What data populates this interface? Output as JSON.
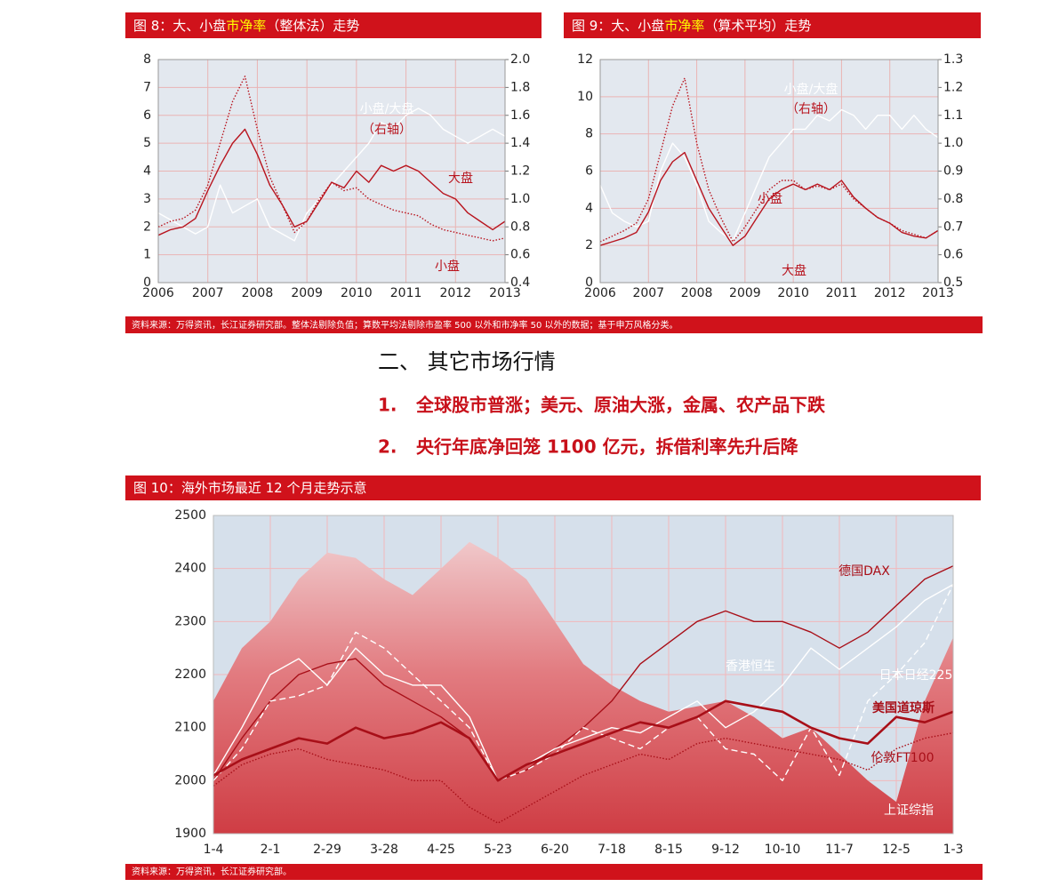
{
  "chart_data": [
    {
      "type": "line",
      "title": [
        "图 8：大、小盘",
        "市净率",
        "（整体法）走势"
      ],
      "x": [
        2006,
        2006.25,
        2006.5,
        2006.75,
        2007,
        2007.25,
        2007.5,
        2007.75,
        2008,
        2008.25,
        2008.5,
        2008.75,
        2009,
        2009.25,
        2009.5,
        2009.75,
        2010,
        2010.25,
        2010.5,
        2010.75,
        2011,
        2011.25,
        2011.5,
        2011.75,
        2012,
        2012.25,
        2012.5,
        2012.75,
        2013
      ],
      "xlim": [
        2006,
        2013
      ],
      "xticks": [
        2006,
        2007,
        2008,
        2009,
        2010,
        2011,
        2012,
        2013
      ],
      "ylim": [
        0,
        8
      ],
      "yticks": [
        0,
        1,
        2,
        3,
        4,
        5,
        6,
        7,
        8
      ],
      "y2lim": [
        0.4,
        2.0
      ],
      "y2ticks": [
        0.4,
        0.6,
        0.8,
        {
          "value": 1.0,
          "label": "1.0"
        },
        1.2,
        1.4,
        1.6,
        1.8,
        {
          "value": 2.0,
          "label": "2.0"
        }
      ],
      "grid": true,
      "series": [
        {
          "name": "小盘/大盘",
          "axis": "y2",
          "color": "#ffffff",
          "style": "solid",
          "values": [
            0.9,
            0.85,
            0.8,
            0.75,
            0.8,
            1.1,
            0.9,
            0.95,
            1.0,
            0.8,
            0.75,
            0.7,
            0.9,
            1.0,
            1.1,
            1.2,
            1.3,
            1.4,
            1.55,
            1.5,
            1.6,
            1.65,
            1.6,
            1.5,
            1.45,
            1.4,
            1.45,
            1.5,
            1.45
          ]
        },
        {
          "name": "小盘",
          "color": "#b8141e",
          "style": "dotted",
          "values": [
            2.0,
            2.2,
            2.3,
            2.6,
            3.5,
            5.0,
            6.5,
            7.4,
            5.5,
            3.8,
            2.8,
            1.8,
            2.2,
            3.0,
            3.6,
            3.3,
            3.4,
            3.0,
            2.8,
            2.6,
            2.5,
            2.4,
            2.1,
            1.9,
            1.8,
            1.7,
            1.6,
            1.5,
            1.6
          ]
        },
        {
          "name": "大盘",
          "color": "#b8141e",
          "style": "solid",
          "values": [
            1.7,
            1.9,
            2.0,
            2.3,
            3.3,
            4.2,
            5.0,
            5.5,
            4.6,
            3.5,
            2.8,
            2.0,
            2.2,
            2.9,
            3.6,
            3.4,
            4.0,
            3.6,
            4.2,
            4.0,
            4.2,
            4.0,
            3.6,
            3.2,
            3.0,
            2.5,
            2.2,
            1.9,
            2.2
          ]
        }
      ],
      "annotations": [
        "（右轴）"
      ]
    },
    {
      "type": "line",
      "title": [
        "图 9：大、小盘",
        "市净率",
        "（算术平均）走势"
      ],
      "x": [
        2006,
        2006.25,
        2006.5,
        2006.75,
        2007,
        2007.25,
        2007.5,
        2007.75,
        2008,
        2008.25,
        2008.5,
        2008.75,
        2009,
        2009.25,
        2009.5,
        2009.75,
        2010,
        2010.25,
        2010.5,
        2010.75,
        2011,
        2011.25,
        2011.5,
        2011.75,
        2012,
        2012.25,
        2012.5,
        2012.75,
        2013
      ],
      "xlim": [
        2006,
        2013
      ],
      "xticks": [
        2006,
        2007,
        2008,
        2009,
        2010,
        2011,
        2012,
        2013
      ],
      "ylim": [
        0,
        12
      ],
      "yticks": [
        0,
        2,
        4,
        6,
        8,
        10,
        12
      ],
      "y2lim": [
        0.5,
        1.3
      ],
      "y2ticks": [
        0.5,
        0.6,
        0.7,
        0.8,
        0.9,
        {
          "value": 1.0,
          "label": "1.0"
        },
        1.1,
        1.2,
        1.3
      ],
      "grid": true,
      "series": [
        {
          "name": "小盘/大盘",
          "axis": "y2",
          "color": "#ffffff",
          "style": "solid",
          "values": [
            0.85,
            0.75,
            0.72,
            0.7,
            0.72,
            0.9,
            1.0,
            0.95,
            0.85,
            0.72,
            0.68,
            0.65,
            0.75,
            0.85,
            0.95,
            1.0,
            1.05,
            1.05,
            1.1,
            1.08,
            1.12,
            1.1,
            1.05,
            1.1,
            1.1,
            1.05,
            1.1,
            1.05,
            1.02
          ]
        },
        {
          "name": "小盘",
          "color": "#b8141e",
          "style": "dotted",
          "values": [
            2.2,
            2.5,
            2.8,
            3.2,
            4.5,
            7,
            9.5,
            11,
            7.5,
            5,
            3.5,
            2.2,
            3,
            4,
            5,
            5.5,
            5.5,
            5.0,
            5.2,
            5.0,
            5.3,
            4.5,
            4.0,
            3.5,
            3.2,
            2.8,
            2.6,
            2.4,
            2.8
          ]
        },
        {
          "name": "大盘",
          "color": "#b8141e",
          "style": "solid",
          "values": [
            2.0,
            2.2,
            2.4,
            2.7,
            3.8,
            5.5,
            6.5,
            7.0,
            5.5,
            4.0,
            3.0,
            2.0,
            2.5,
            3.5,
            4.5,
            5.0,
            5.3,
            5.0,
            5.3,
            5.0,
            5.5,
            4.6,
            4.0,
            3.5,
            3.2,
            2.7,
            2.5,
            2.4,
            2.8
          ]
        }
      ],
      "annotations": [
        "（右轴）"
      ]
    },
    {
      "type": "line",
      "title": [
        "图 10：海外市场最近 12 个月走势示意"
      ],
      "categories": [
        "1-4",
        null,
        "2-1",
        null,
        "2-29",
        null,
        "3-28",
        null,
        "4-25",
        null,
        "5-23",
        null,
        "6-20",
        null,
        "7-18",
        null,
        "8-15",
        null,
        "9-12",
        null,
        "10-10",
        null,
        "11-7",
        null,
        "12-5",
        null,
        "1-3"
      ],
      "ylim": [
        1900,
        2500
      ],
      "yticks": [
        1900,
        2000,
        2100,
        2200,
        2300,
        2400,
        2500
      ],
      "grid": true,
      "series": [
        {
          "name": "上证综指",
          "color": "#d9545a",
          "style": "area",
          "values": [
            2150,
            2250,
            2300,
            2380,
            2430,
            2420,
            2380,
            2350,
            2400,
            2450,
            2420,
            2380,
            2300,
            2220,
            2180,
            2150,
            2130,
            2140,
            2150,
            2120,
            2080,
            2100,
            2050,
            2000,
            1960,
            2150,
            2270
          ]
        },
        {
          "name": "德国DAX",
          "color": "#a80f18",
          "style": "solid",
          "values": [
            2000,
            2080,
            2150,
            2200,
            2220,
            2230,
            2180,
            2150,
            2120,
            2080,
            2000,
            2020,
            2060,
            2100,
            2150,
            2220,
            2260,
            2300,
            2320,
            2300,
            2300,
            2280,
            2250,
            2280,
            2330,
            2380,
            2405
          ]
        },
        {
          "name": "香港恒生",
          "color": "#ffffff",
          "style": "solid",
          "values": [
            2010,
            2100,
            2200,
            2230,
            2180,
            2250,
            2200,
            2180,
            2180,
            2120,
            2000,
            2030,
            2060,
            2080,
            2100,
            2090,
            2120,
            2150,
            2100,
            2130,
            2180,
            2250,
            2210,
            2250,
            2290,
            2340,
            2370
          ]
        },
        {
          "name": "日本日经225",
          "color": "#ffffff",
          "style": "dashed",
          "values": [
            2000,
            2060,
            2150,
            2160,
            2180,
            2280,
            2250,
            2200,
            2150,
            2100,
            2000,
            2020,
            2050,
            2100,
            2080,
            2060,
            2100,
            2120,
            2060,
            2050,
            2000,
            2100,
            2010,
            2150,
            2200,
            2260,
            2370
          ]
        },
        {
          "name": "美国道琼斯",
          "color": "#a80f18",
          "style": "bold",
          "values": [
            2010,
            2040,
            2060,
            2080,
            2070,
            2100,
            2080,
            2090,
            2110,
            2080,
            2000,
            2030,
            2050,
            2070,
            2090,
            2110,
            2100,
            2120,
            2150,
            2140,
            2130,
            2100,
            2080,
            2070,
            2120,
            2110,
            2130
          ]
        },
        {
          "name": "伦敦FT100",
          "color": "#a80f18",
          "style": "dotted",
          "values": [
            1990,
            2030,
            2050,
            2060,
            2040,
            2030,
            2020,
            2000,
            2000,
            1950,
            1920,
            1950,
            1980,
            2010,
            2030,
            2050,
            2040,
            2070,
            2080,
            2070,
            2060,
            2050,
            2040,
            2020,
            2060,
            2080,
            2090
          ]
        }
      ]
    }
  ],
  "section": {
    "title": "二、 其它市场行情",
    "items": [
      {
        "number": "1.",
        "text": "全球股市普涨；美元、原油大涨，金属、农产品下跌"
      },
      {
        "number": "2.",
        "text": "央行年底净回笼 1100 亿元，拆借利率先升后降"
      }
    ]
  },
  "sources": [
    "资料来源：万得资讯，长江证券研究部。整体法剔除负值；算数平均法剔除市盈率 500 以外和市净率 50 以外的数据；基于申万风格分类。",
    "资料来源：万得资讯，长江证券研究部。"
  ]
}
